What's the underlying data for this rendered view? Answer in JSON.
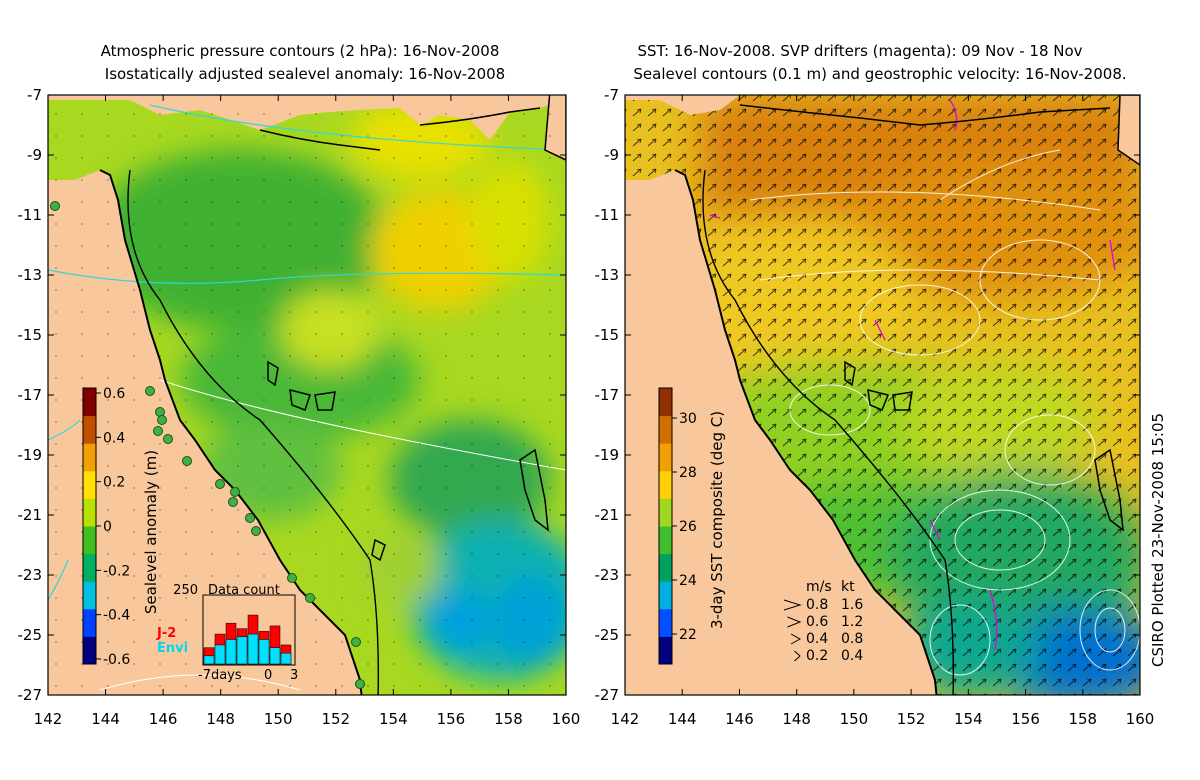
{
  "left_panel": {
    "title_line1": "Atmospheric pressure contours (2 hPa): 16-Nov-2008",
    "title_line2": "Isostatically adjusted sealevel anomaly: 16-Nov-2008",
    "colorbar_label": "Sealevel anomaly (m)",
    "colorbar_ticks": [
      "0.6",
      "0.4",
      "0.2",
      "0",
      "-0.2",
      "-0.4",
      "-0.6"
    ],
    "colormap": [
      "#000080",
      "#0040ff",
      "#00c0e0",
      "#00b060",
      "#40c020",
      "#b8e000",
      "#ffe000",
      "#f0a000",
      "#c05000",
      "#800000"
    ],
    "inset": {
      "title": "Data count",
      "ymax_label": "250",
      "legend_j2": "J-2",
      "legend_envi": "Envi",
      "x_left": "-7days",
      "x_mid": "0",
      "x_right": "3",
      "j2_color": "#ff0000",
      "envi_color": "#00e0ff",
      "j2_counts": [
        60,
        110,
        150,
        130,
        180,
        120,
        140,
        70
      ],
      "envi_counts": [
        30,
        70,
        90,
        100,
        110,
        90,
        60,
        40
      ]
    }
  },
  "right_panel": {
    "title_line1": "SST: 16-Nov-2008. SVP drifters (magenta): 09 Nov - 18 Nov",
    "title_line2": "Sealevel contours (0.1 m) and geostrophic velocity: 16-Nov-2008.",
    "colorbar_label": "3-day SST composite (deg C)",
    "colorbar_ticks": [
      "30",
      "28",
      "26",
      "24",
      "22"
    ],
    "colormap": [
      "#000080",
      "#0050ff",
      "#00b0e0",
      "#00a060",
      "#40c030",
      "#a0d820",
      "#ffd000",
      "#f0a000",
      "#d07000",
      "#903000"
    ],
    "velocity_legend": {
      "header_ms": "m/s",
      "header_kt": "kt",
      "rows": [
        {
          "ms": "0.8",
          "kt": "1.6"
        },
        {
          "ms": "0.6",
          "kt": "1.2"
        },
        {
          "ms": "0.4",
          "kt": "0.8"
        },
        {
          "ms": "0.2",
          "kt": "0.4"
        }
      ]
    }
  },
  "axes": {
    "y_ticks": [
      "-7",
      "-9",
      "-11",
      "-13",
      "-15",
      "-17",
      "-19",
      "-21",
      "-23",
      "-25",
      "-27"
    ],
    "x_ticks": [
      "142",
      "144",
      "146",
      "148",
      "150",
      "152",
      "154",
      "156",
      "158",
      "160"
    ],
    "lon_range": [
      142,
      160
    ],
    "lat_range": [
      -27,
      -7
    ]
  },
  "footer_note": "CSIRO Plotted 23-Nov-2008 15:05",
  "colors": {
    "land": "#f8c89c",
    "pressure_contour": "#30d8d8",
    "coast": "#000000",
    "drifter": "#e000e0"
  }
}
